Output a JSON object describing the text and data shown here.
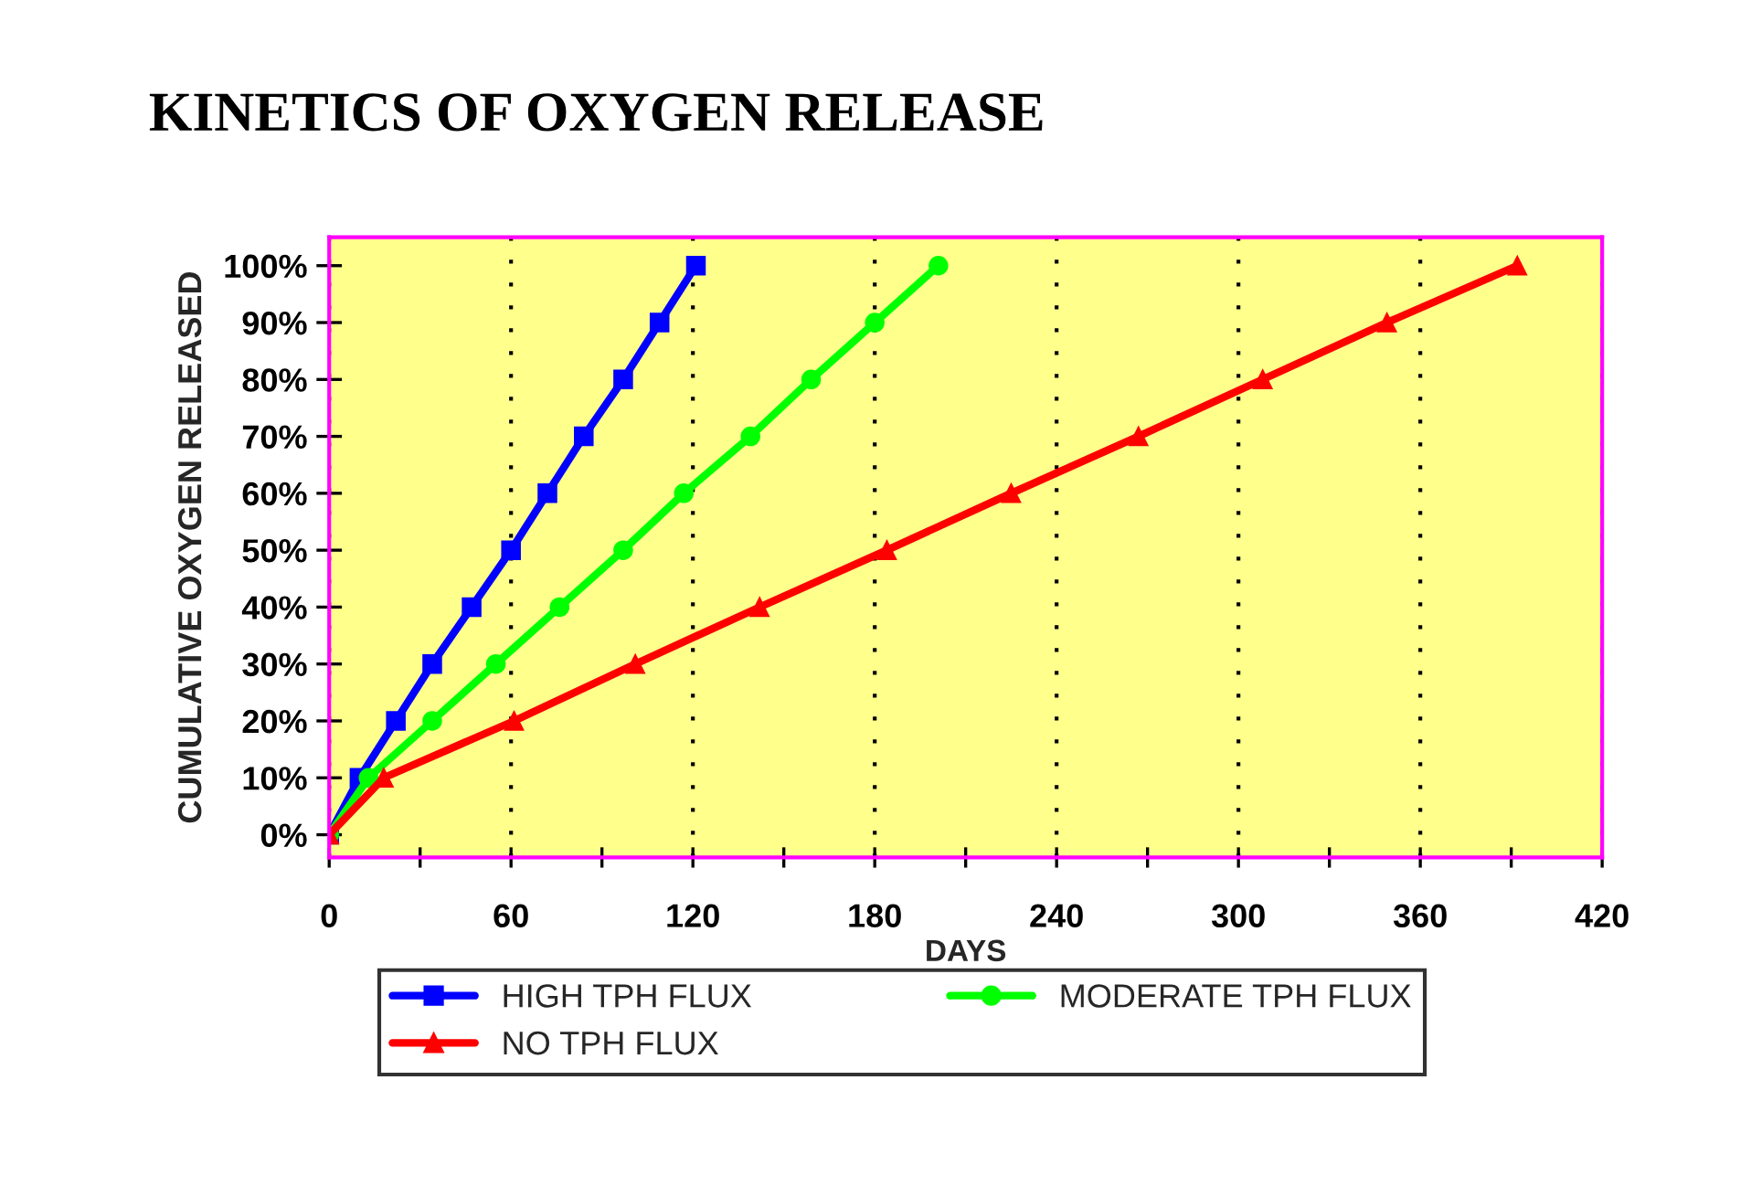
{
  "chart_data": {
    "type": "line",
    "title": "KINETICS OF OXYGEN RELEASE",
    "xlabel": "DAYS",
    "ylabel": "CUMULATIVE OXYGEN RELEASED",
    "series": [
      {
        "name": "HIGH TPH FLUX",
        "color": "#0000ff",
        "marker": "square",
        "x": [
          0,
          10,
          22,
          34,
          47,
          60,
          72,
          84,
          97,
          109,
          121
        ],
        "values": [
          0,
          10,
          20,
          30,
          40,
          50,
          60,
          70,
          80,
          90,
          100
        ]
      },
      {
        "name": "MODERATE TPH FLUX",
        "color": "#00ff00",
        "marker": "circle",
        "x": [
          0,
          13,
          34,
          55,
          76,
          97,
          117,
          139,
          159,
          180,
          201
        ],
        "values": [
          0,
          10,
          20,
          30,
          40,
          50,
          60,
          70,
          80,
          90,
          100
        ]
      },
      {
        "name": "NO TPH FLUX",
        "color": "#ff0000",
        "marker": "triangle",
        "x": [
          0,
          18,
          61,
          101,
          142,
          184,
          225,
          267,
          308,
          349,
          392
        ],
        "values": [
          0,
          10,
          20,
          30,
          40,
          50,
          60,
          70,
          80,
          90,
          100
        ]
      }
    ],
    "xlim": [
      0,
      420
    ],
    "xticks": [
      0,
      {
        "value": 30,
        "label": null
      },
      60,
      {
        "value": 90,
        "label": null
      },
      120,
      {
        "value": 150,
        "label": null
      },
      180,
      {
        "value": 210,
        "label": null
      },
      240,
      {
        "value": 270,
        "label": null
      },
      300,
      {
        "value": 330,
        "label": null
      },
      360,
      {
        "value": 390,
        "label": null
      },
      420
    ],
    "ylim": [
      -4,
      105
    ],
    "yticks": [
      {
        "value": 0,
        "label": "0%"
      },
      {
        "value": 10,
        "label": "10%"
      },
      {
        "value": 20,
        "label": "20%"
      },
      {
        "value": 30,
        "label": "30%"
      },
      {
        "value": 40,
        "label": "40%"
      },
      {
        "value": 50,
        "label": "50%"
      },
      {
        "value": 60,
        "label": "60%"
      },
      {
        "value": 70,
        "label": "70%"
      },
      {
        "value": 80,
        "label": "80%"
      },
      {
        "value": 90,
        "label": "90%"
      },
      {
        "value": 100,
        "label": "100%"
      }
    ],
    "grid": "x",
    "legend": "bottom",
    "line_style": "solid"
  }
}
